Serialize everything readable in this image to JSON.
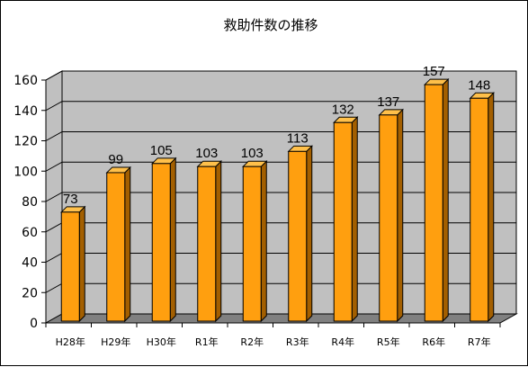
{
  "chart_data": {
    "type": "bar",
    "title": "救助件数の推移",
    "categories": [
      "H28年",
      "H29年",
      "H30年",
      "R1年",
      "R2年",
      "R3年",
      "R4年",
      "R5年",
      "R6年",
      "R7年"
    ],
    "values": [
      73,
      99,
      105,
      103,
      103,
      113,
      132,
      137,
      157,
      148
    ],
    "yticks": [
      0,
      20,
      40,
      60,
      80,
      100,
      120,
      140,
      160
    ],
    "ylim": [
      0,
      160
    ],
    "grid": true,
    "legend": "none",
    "three_d": true,
    "colors": {
      "bar_front": "#ff9f0f",
      "bar_top": "#ffc04a",
      "bar_side": "#a35f00",
      "wall": "#c0c0c0",
      "floor": "#808080",
      "gridline": "#000000"
    }
  }
}
